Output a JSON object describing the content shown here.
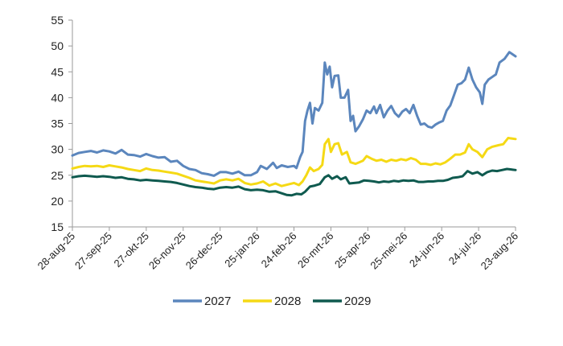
{
  "chart_data": {
    "type": "line",
    "title": "",
    "xlabel": "",
    "ylabel": "",
    "ylim": [
      15,
      55
    ],
    "yticks": [
      15,
      20,
      25,
      30,
      35,
      40,
      45,
      50,
      55
    ],
    "x_start": "2025-08-28",
    "x_end": "2026-08-23",
    "xtick_labels": [
      "28-aug-25",
      "27-sep-25",
      "27-okt-25",
      "26-nov-25",
      "26-dec-25",
      "25-jan-26",
      "24-feb-26",
      "26-mrt-26",
      "25-apr-26",
      "25-mei-26",
      "24-jun-26",
      "24-jul-26",
      "23-aug-26"
    ],
    "xtick_dates": [
      "2025-08-28",
      "2025-09-27",
      "2025-10-27",
      "2025-11-26",
      "2025-12-26",
      "2026-01-25",
      "2026-02-24",
      "2026-03-26",
      "2026-04-25",
      "2026-05-25",
      "2026-06-24",
      "2026-07-24",
      "2026-08-23"
    ],
    "grid": false,
    "legend_position": "bottom",
    "series": [
      {
        "name": "2027",
        "color": "#5B86BD",
        "points": [
          [
            "2025-08-28",
            28.8
          ],
          [
            "2025-09-02",
            29.3
          ],
          [
            "2025-09-07",
            29.5
          ],
          [
            "2025-09-12",
            29.7
          ],
          [
            "2025-09-17",
            29.4
          ],
          [
            "2025-09-22",
            29.8
          ],
          [
            "2025-09-27",
            29.6
          ],
          [
            "2025-10-02",
            29.2
          ],
          [
            "2025-10-07",
            29.9
          ],
          [
            "2025-10-12",
            29.0
          ],
          [
            "2025-10-17",
            28.9
          ],
          [
            "2025-10-22",
            28.6
          ],
          [
            "2025-10-27",
            29.1
          ],
          [
            "2025-11-01",
            28.7
          ],
          [
            "2025-11-06",
            28.4
          ],
          [
            "2025-11-11",
            28.5
          ],
          [
            "2025-11-16",
            27.6
          ],
          [
            "2025-11-21",
            27.8
          ],
          [
            "2025-11-26",
            26.8
          ],
          [
            "2025-12-01",
            26.2
          ],
          [
            "2025-12-06",
            26.0
          ],
          [
            "2025-12-11",
            25.4
          ],
          [
            "2025-12-16",
            25.2
          ],
          [
            "2025-12-21",
            24.9
          ],
          [
            "2025-12-26",
            25.6
          ],
          [
            "2025-12-31",
            25.6
          ],
          [
            "2026-01-05",
            25.3
          ],
          [
            "2026-01-10",
            25.7
          ],
          [
            "2026-01-15",
            25.0
          ],
          [
            "2026-01-20",
            25.0
          ],
          [
            "2026-01-25",
            25.6
          ],
          [
            "2026-01-28",
            26.8
          ],
          [
            "2026-02-02",
            26.2
          ],
          [
            "2026-02-07",
            27.4
          ],
          [
            "2026-02-10",
            26.4
          ],
          [
            "2026-02-14",
            26.9
          ],
          [
            "2026-02-19",
            26.6
          ],
          [
            "2026-02-24",
            26.8
          ],
          [
            "2026-02-26",
            26.4
          ],
          [
            "2026-03-01",
            28.5
          ],
          [
            "2026-03-03",
            29.5
          ],
          [
            "2026-03-05",
            35.5
          ],
          [
            "2026-03-07",
            37.5
          ],
          [
            "2026-03-09",
            39.0
          ],
          [
            "2026-03-11",
            35.0
          ],
          [
            "2026-03-13",
            38.0
          ],
          [
            "2026-03-16",
            37.5
          ],
          [
            "2026-03-19",
            39.0
          ],
          [
            "2026-03-21",
            46.8
          ],
          [
            "2026-03-23",
            44.5
          ],
          [
            "2026-03-25",
            46.0
          ],
          [
            "2026-03-27",
            42.0
          ],
          [
            "2026-03-29",
            44.2
          ],
          [
            "2026-04-01",
            44.3
          ],
          [
            "2026-04-03",
            40.0
          ],
          [
            "2026-04-06",
            40.0
          ],
          [
            "2026-04-09",
            41.5
          ],
          [
            "2026-04-11",
            35.5
          ],
          [
            "2026-04-13",
            36.5
          ],
          [
            "2026-04-15",
            33.5
          ],
          [
            "2026-04-18",
            34.5
          ],
          [
            "2026-04-21",
            35.8
          ],
          [
            "2026-04-24",
            37.5
          ],
          [
            "2026-04-27",
            37.0
          ],
          [
            "2026-04-30",
            38.3
          ],
          [
            "2026-05-02",
            37.0
          ],
          [
            "2026-05-05",
            38.6
          ],
          [
            "2026-05-08",
            36.2
          ],
          [
            "2026-05-11",
            37.5
          ],
          [
            "2026-05-14",
            38.4
          ],
          [
            "2026-05-17",
            37.0
          ],
          [
            "2026-05-20",
            36.3
          ],
          [
            "2026-05-23",
            37.3
          ],
          [
            "2026-05-26",
            37.8
          ],
          [
            "2026-05-29",
            37.0
          ],
          [
            "2026-06-01",
            38.6
          ],
          [
            "2026-06-04",
            36.5
          ],
          [
            "2026-06-07",
            34.8
          ],
          [
            "2026-06-10",
            35.0
          ],
          [
            "2026-06-13",
            34.4
          ],
          [
            "2026-06-16",
            34.2
          ],
          [
            "2026-06-19",
            34.8
          ],
          [
            "2026-06-22",
            35.2
          ],
          [
            "2026-06-25",
            35.5
          ],
          [
            "2026-06-28",
            37.5
          ],
          [
            "2026-07-01",
            38.5
          ],
          [
            "2026-07-04",
            40.5
          ],
          [
            "2026-07-07",
            42.5
          ],
          [
            "2026-07-10",
            42.8
          ],
          [
            "2026-07-13",
            43.5
          ],
          [
            "2026-07-16",
            45.8
          ],
          [
            "2026-07-19",
            43.5
          ],
          [
            "2026-07-22",
            42.0
          ],
          [
            "2026-07-25",
            41.0
          ],
          [
            "2026-07-27",
            38.8
          ],
          [
            "2026-07-29",
            42.5
          ],
          [
            "2026-08-01",
            43.5
          ],
          [
            "2026-08-04",
            44.0
          ],
          [
            "2026-08-07",
            44.5
          ],
          [
            "2026-08-10",
            46.8
          ],
          [
            "2026-08-14",
            47.5
          ],
          [
            "2026-08-18",
            48.8
          ],
          [
            "2026-08-23",
            48.0
          ]
        ]
      },
      {
        "name": "2028",
        "color": "#F5D915",
        "points": [
          [
            "2025-08-28",
            26.3
          ],
          [
            "2025-09-02",
            26.6
          ],
          [
            "2025-09-07",
            26.8
          ],
          [
            "2025-09-12",
            26.7
          ],
          [
            "2025-09-17",
            26.8
          ],
          [
            "2025-09-22",
            26.6
          ],
          [
            "2025-09-27",
            26.9
          ],
          [
            "2025-10-02",
            26.7
          ],
          [
            "2025-10-07",
            26.5
          ],
          [
            "2025-10-12",
            26.2
          ],
          [
            "2025-10-17",
            26.0
          ],
          [
            "2025-10-22",
            25.8
          ],
          [
            "2025-10-27",
            26.3
          ],
          [
            "2025-11-01",
            26.0
          ],
          [
            "2025-11-06",
            25.9
          ],
          [
            "2025-11-11",
            25.7
          ],
          [
            "2025-11-16",
            25.5
          ],
          [
            "2025-11-21",
            25.3
          ],
          [
            "2025-11-26",
            24.9
          ],
          [
            "2025-12-01",
            24.5
          ],
          [
            "2025-12-06",
            24.0
          ],
          [
            "2025-12-11",
            23.8
          ],
          [
            "2025-12-16",
            23.6
          ],
          [
            "2025-12-21",
            23.4
          ],
          [
            "2025-12-26",
            24.0
          ],
          [
            "2025-12-31",
            24.2
          ],
          [
            "2026-01-05",
            24.0
          ],
          [
            "2026-01-10",
            24.3
          ],
          [
            "2026-01-15",
            23.5
          ],
          [
            "2026-01-20",
            23.2
          ],
          [
            "2026-01-25",
            23.4
          ],
          [
            "2026-01-30",
            23.8
          ],
          [
            "2026-02-04",
            23.0
          ],
          [
            "2026-02-09",
            23.4
          ],
          [
            "2026-02-14",
            22.9
          ],
          [
            "2026-02-19",
            23.2
          ],
          [
            "2026-02-24",
            23.5
          ],
          [
            "2026-02-28",
            23.1
          ],
          [
            "2026-03-03",
            23.8
          ],
          [
            "2026-03-06",
            25.0
          ],
          [
            "2026-03-09",
            26.5
          ],
          [
            "2026-03-12",
            25.8
          ],
          [
            "2026-03-16",
            26.2
          ],
          [
            "2026-03-19",
            27.0
          ],
          [
            "2026-03-21",
            31.0
          ],
          [
            "2026-03-24",
            32.0
          ],
          [
            "2026-03-26",
            29.5
          ],
          [
            "2026-03-29",
            31.0
          ],
          [
            "2026-04-01",
            31.2
          ],
          [
            "2026-04-04",
            29.0
          ],
          [
            "2026-04-08",
            29.5
          ],
          [
            "2026-04-11",
            27.5
          ],
          [
            "2026-04-15",
            27.2
          ],
          [
            "2026-04-18",
            27.5
          ],
          [
            "2026-04-21",
            27.8
          ],
          [
            "2026-04-24",
            28.7
          ],
          [
            "2026-04-28",
            28.2
          ],
          [
            "2026-05-02",
            27.8
          ],
          [
            "2026-05-06",
            28.0
          ],
          [
            "2026-05-10",
            27.6
          ],
          [
            "2026-05-14",
            28.0
          ],
          [
            "2026-05-18",
            27.8
          ],
          [
            "2026-05-22",
            28.1
          ],
          [
            "2026-05-26",
            27.9
          ],
          [
            "2026-05-30",
            28.3
          ],
          [
            "2026-06-03",
            28.0
          ],
          [
            "2026-06-07",
            27.2
          ],
          [
            "2026-06-11",
            27.2
          ],
          [
            "2026-06-15",
            27.0
          ],
          [
            "2026-06-19",
            27.3
          ],
          [
            "2026-06-23",
            27.1
          ],
          [
            "2026-06-27",
            27.5
          ],
          [
            "2026-07-01",
            28.2
          ],
          [
            "2026-07-05",
            29.0
          ],
          [
            "2026-07-09",
            29.0
          ],
          [
            "2026-07-13",
            29.4
          ],
          [
            "2026-07-16",
            31.0
          ],
          [
            "2026-07-19",
            30.0
          ],
          [
            "2026-07-23",
            29.5
          ],
          [
            "2026-07-27",
            28.5
          ],
          [
            "2026-07-31",
            30.0
          ],
          [
            "2026-08-04",
            30.5
          ],
          [
            "2026-08-09",
            30.8
          ],
          [
            "2026-08-13",
            31.0
          ],
          [
            "2026-08-17",
            32.2
          ],
          [
            "2026-08-23",
            32.0
          ]
        ]
      },
      {
        "name": "2029",
        "color": "#0F5A4F",
        "points": [
          [
            "2025-08-28",
            24.6
          ],
          [
            "2025-09-02",
            24.8
          ],
          [
            "2025-09-07",
            24.9
          ],
          [
            "2025-09-12",
            24.8
          ],
          [
            "2025-09-17",
            24.7
          ],
          [
            "2025-09-22",
            24.8
          ],
          [
            "2025-09-27",
            24.7
          ],
          [
            "2025-10-02",
            24.5
          ],
          [
            "2025-10-07",
            24.6
          ],
          [
            "2025-10-12",
            24.3
          ],
          [
            "2025-10-17",
            24.2
          ],
          [
            "2025-10-22",
            24.0
          ],
          [
            "2025-10-27",
            24.1
          ],
          [
            "2025-11-01",
            24.0
          ],
          [
            "2025-11-06",
            23.9
          ],
          [
            "2025-11-11",
            23.8
          ],
          [
            "2025-11-16",
            23.7
          ],
          [
            "2025-11-21",
            23.5
          ],
          [
            "2025-11-26",
            23.2
          ],
          [
            "2025-12-01",
            22.9
          ],
          [
            "2025-12-06",
            22.7
          ],
          [
            "2025-12-11",
            22.6
          ],
          [
            "2025-12-16",
            22.4
          ],
          [
            "2025-12-21",
            22.3
          ],
          [
            "2025-12-26",
            22.6
          ],
          [
            "2025-12-31",
            22.7
          ],
          [
            "2026-01-05",
            22.6
          ],
          [
            "2026-01-10",
            22.8
          ],
          [
            "2026-01-15",
            22.3
          ],
          [
            "2026-01-20",
            22.1
          ],
          [
            "2026-01-25",
            22.2
          ],
          [
            "2026-01-30",
            22.1
          ],
          [
            "2026-02-04",
            21.8
          ],
          [
            "2026-02-09",
            21.9
          ],
          [
            "2026-02-14",
            21.5
          ],
          [
            "2026-02-18",
            21.2
          ],
          [
            "2026-02-22",
            21.1
          ],
          [
            "2026-02-26",
            21.4
          ],
          [
            "2026-03-02",
            21.3
          ],
          [
            "2026-03-05",
            21.8
          ],
          [
            "2026-03-09",
            22.8
          ],
          [
            "2026-03-13",
            23.0
          ],
          [
            "2026-03-17",
            23.3
          ],
          [
            "2026-03-21",
            24.6
          ],
          [
            "2026-03-24",
            25.0
          ],
          [
            "2026-03-27",
            24.3
          ],
          [
            "2026-03-31",
            24.8
          ],
          [
            "2026-04-03",
            24.2
          ],
          [
            "2026-04-07",
            24.6
          ],
          [
            "2026-04-10",
            23.4
          ],
          [
            "2026-04-14",
            23.5
          ],
          [
            "2026-04-18",
            23.6
          ],
          [
            "2026-04-22",
            24.0
          ],
          [
            "2026-04-26",
            23.9
          ],
          [
            "2026-04-30",
            23.8
          ],
          [
            "2026-05-04",
            23.6
          ],
          [
            "2026-05-08",
            23.8
          ],
          [
            "2026-05-12",
            23.7
          ],
          [
            "2026-05-16",
            23.9
          ],
          [
            "2026-05-20",
            23.8
          ],
          [
            "2026-05-24",
            24.0
          ],
          [
            "2026-05-28",
            23.9
          ],
          [
            "2026-06-01",
            24.0
          ],
          [
            "2026-06-05",
            23.7
          ],
          [
            "2026-06-09",
            23.7
          ],
          [
            "2026-06-13",
            23.8
          ],
          [
            "2026-06-17",
            23.8
          ],
          [
            "2026-06-21",
            23.9
          ],
          [
            "2026-06-25",
            23.9
          ],
          [
            "2026-06-29",
            24.1
          ],
          [
            "2026-07-03",
            24.5
          ],
          [
            "2026-07-07",
            24.6
          ],
          [
            "2026-07-11",
            24.8
          ],
          [
            "2026-07-15",
            25.8
          ],
          [
            "2026-07-19",
            25.3
          ],
          [
            "2026-07-23",
            25.6
          ],
          [
            "2026-07-27",
            25.0
          ],
          [
            "2026-07-31",
            25.6
          ],
          [
            "2026-08-04",
            25.9
          ],
          [
            "2026-08-08",
            25.8
          ],
          [
            "2026-08-12",
            26.0
          ],
          [
            "2026-08-16",
            26.2
          ],
          [
            "2026-08-20",
            26.1
          ],
          [
            "2026-08-23",
            26.0
          ]
        ]
      }
    ]
  }
}
